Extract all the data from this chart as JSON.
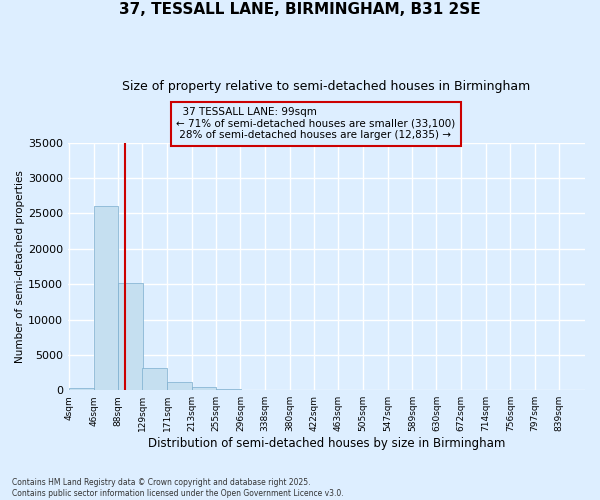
{
  "title": "37, TESSALL LANE, BIRMINGHAM, B31 2SE",
  "subtitle": "Size of property relative to semi-detached houses in Birmingham",
  "xlabel": "Distribution of semi-detached houses by size in Birmingham",
  "ylabel": "Number of semi-detached properties",
  "bin_edges": [
    4,
    46,
    88,
    129,
    171,
    213,
    255,
    296,
    338,
    380,
    422,
    463,
    505,
    547,
    589,
    630,
    672,
    714,
    756,
    797,
    839
  ],
  "bin_labels": [
    "4sqm",
    "46sqm",
    "88sqm",
    "129sqm",
    "171sqm",
    "213sqm",
    "255sqm",
    "296sqm",
    "338sqm",
    "380sqm",
    "422sqm",
    "463sqm",
    "505sqm",
    "547sqm",
    "589sqm",
    "630sqm",
    "672sqm",
    "714sqm",
    "756sqm",
    "797sqm",
    "839sqm"
  ],
  "bar_heights": [
    300,
    26100,
    15100,
    3200,
    1100,
    400,
    150,
    30,
    10,
    5,
    3,
    2,
    1,
    1,
    1,
    1,
    1,
    1,
    1,
    1
  ],
  "bar_color": "#c5dff0",
  "bar_edgecolor": "#7aadce",
  "property_size": 99,
  "property_label": "37 TESSALL LANE: 99sqm",
  "pct_smaller": 71,
  "n_smaller": 33100,
  "pct_larger": 28,
  "n_larger": 12835,
  "vline_color": "#cc0000",
  "annotation_box_edgecolor": "#cc0000",
  "background_color": "#ddeeff",
  "grid_color": "#ffffff",
  "footer_line1": "Contains HM Land Registry data © Crown copyright and database right 2025.",
  "footer_line2": "Contains public sector information licensed under the Open Government Licence v3.0.",
  "ylim": [
    0,
    35000
  ],
  "yticks": [
    0,
    5000,
    10000,
    15000,
    20000,
    25000,
    30000,
    35000
  ]
}
